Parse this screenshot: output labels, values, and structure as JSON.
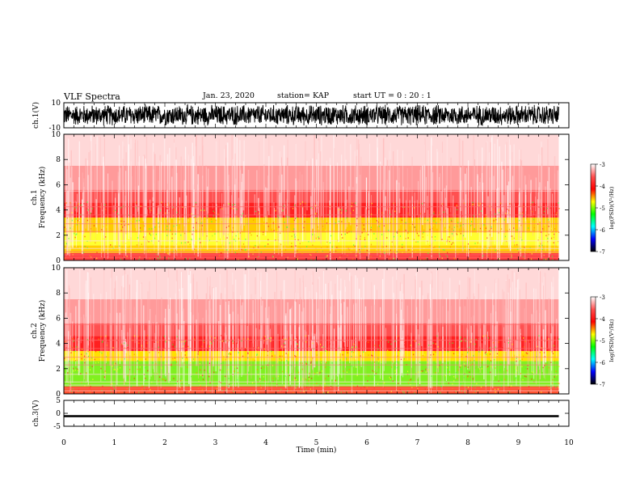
{
  "header": {
    "title": "VLF Spectra",
    "date": "Jan. 23, 2020",
    "station": "station= KAP",
    "start": "start UT =  0 : 20 : 1"
  },
  "colorbar": {
    "label": "log(PSD)(V²/Hz)",
    "ticks": [
      "-3",
      "-4",
      "-5",
      "-6",
      "-7"
    ],
    "colors": [
      "#ffffff",
      "#ff5050",
      "#ff0000",
      "#ffff00",
      "#00ff00",
      "#00ffff",
      "#0000ff",
      "#000000"
    ]
  },
  "chart_data": [
    {
      "type": "line",
      "name": "ch.1 waveform",
      "ylabel": "ch.1(V)",
      "ylim": [
        -10,
        10
      ],
      "yticks": [
        "10",
        "-10"
      ],
      "xlim": [
        0,
        10
      ],
      "description_values": "dense oscillating trace spanning roughly -9 to 9 V, from t=0 to t≈9.8 min",
      "amplitude_approx": 9
    },
    {
      "type": "heatmap",
      "name": "ch.1 spectrogram",
      "ylabel": "ch.1\nFrequency (kHz)",
      "ylim": [
        0,
        10
      ],
      "yticks": [
        "0",
        "2",
        "4",
        "6",
        "8",
        "10"
      ],
      "xlim": [
        0,
        10
      ],
      "bands": [
        {
          "freq": [
            0,
            0.6
          ],
          "color": "#ff4040"
        },
        {
          "freq": [
            0.6,
            1.2
          ],
          "color": "#ffd000"
        },
        {
          "freq": [
            1.2,
            2.2
          ],
          "color": "#ffff30"
        },
        {
          "freq": [
            2.2,
            3.4
          ],
          "color": "#ffcc00"
        },
        {
          "freq": [
            3.4,
            4.6
          ],
          "color": "#ff2020"
        },
        {
          "freq": [
            4.6,
            5.6
          ],
          "color": "#ff5050"
        },
        {
          "freq": [
            5.6,
            7.5
          ],
          "color": "#ff9a9a"
        },
        {
          "freq": [
            7.5,
            10
          ],
          "color": "#ffd8d8"
        }
      ]
    },
    {
      "type": "heatmap",
      "name": "ch.2 spectrogram",
      "ylabel": "ch.2\nFrequency (kHz)",
      "ylim": [
        0,
        10
      ],
      "yticks": [
        "0",
        "2",
        "4",
        "6",
        "8",
        "10"
      ],
      "xlim": [
        0,
        10
      ],
      "bands": [
        {
          "freq": [
            0,
            0.6
          ],
          "color": "#ff5030"
        },
        {
          "freq": [
            0.6,
            2.6
          ],
          "color": "#80f020"
        },
        {
          "freq": [
            2.6,
            3.4
          ],
          "color": "#ffe000"
        },
        {
          "freq": [
            3.4,
            4.6
          ],
          "color": "#ff2020"
        },
        {
          "freq": [
            4.6,
            5.6
          ],
          "color": "#ff5050"
        },
        {
          "freq": [
            5.6,
            7.5
          ],
          "color": "#ff9a9a"
        },
        {
          "freq": [
            7.5,
            10
          ],
          "color": "#ffd8d8"
        }
      ]
    },
    {
      "type": "line",
      "name": "ch.3 waveform",
      "ylabel": "ch.3(V)",
      "ylim": [
        -5,
        5
      ],
      "yticks": [
        "5",
        "0",
        "-5"
      ],
      "xlim": [
        0,
        10
      ],
      "xticks": [
        "0",
        "1",
        "2",
        "3",
        "4",
        "5",
        "6",
        "7",
        "8",
        "9",
        "10"
      ],
      "xlabel": "Time (min)",
      "band_y": [
        -1.5,
        -0.7
      ],
      "description_values": "flat thick band near -1 V from t=0 to t≈9.8 min"
    }
  ]
}
